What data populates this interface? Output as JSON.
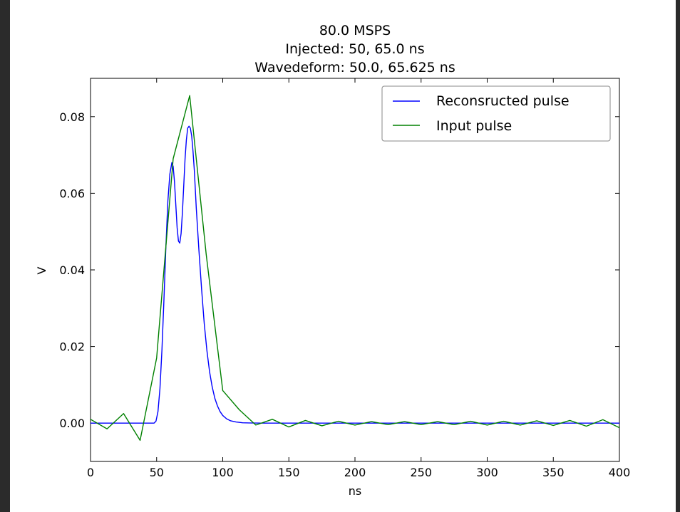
{
  "chart_data": {
    "type": "line",
    "title_lines": [
      "80.0 MSPS",
      "Injected: 50, 65.0 ns",
      "Wavedeform: 50.0, 65.625 ns"
    ],
    "xlabel": "ns",
    "ylabel": "V",
    "xlim": [
      0,
      400
    ],
    "ylim": [
      -0.01,
      0.09
    ],
    "x_ticks": [
      0,
      50,
      100,
      150,
      200,
      250,
      300,
      350,
      400
    ],
    "x_tick_labels": [
      "0",
      "50",
      "100",
      "150",
      "200",
      "250",
      "300",
      "350",
      "400"
    ],
    "y_ticks": [
      0.0,
      0.02,
      0.04,
      0.06,
      0.08
    ],
    "y_tick_labels": [
      "0.00",
      "0.02",
      "0.04",
      "0.06",
      "0.08"
    ],
    "grid": false,
    "legend_position": "top-right",
    "series": [
      {
        "name": "Reconsructed pulse",
        "color": "#0000ff",
        "x": [
          0,
          48,
          49.5,
          51,
          52.5,
          54,
          55.5,
          57,
          58.5,
          60,
          61.5,
          62.5,
          63.5,
          64.5,
          65.5,
          66.5,
          67.5,
          68.5,
          69.5,
          70.5,
          71.5,
          72.5,
          73.5,
          74.5,
          75.5,
          76.5,
          77.5,
          78.5,
          80,
          82,
          84,
          86,
          88,
          90,
          92,
          94,
          96,
          98,
          100,
          103,
          106,
          110,
          115,
          120,
          130,
          150,
          200,
          300,
          400
        ],
        "y": [
          0,
          0,
          0.0005,
          0.003,
          0.009,
          0.019,
          0.032,
          0.046,
          0.058,
          0.065,
          0.068,
          0.067,
          0.063,
          0.057,
          0.051,
          0.0475,
          0.047,
          0.0495,
          0.055,
          0.062,
          0.069,
          0.074,
          0.077,
          0.0775,
          0.077,
          0.075,
          0.071,
          0.066,
          0.056,
          0.045,
          0.035,
          0.026,
          0.019,
          0.0135,
          0.0095,
          0.0065,
          0.0045,
          0.003,
          0.002,
          0.0011,
          0.0006,
          0.0003,
          0.0001,
          5e-05,
          0,
          0,
          0,
          0,
          0
        ]
      },
      {
        "name": "Input pulse",
        "color": "#008000",
        "x": [
          0,
          12.5,
          25,
          37.5,
          50,
          62.5,
          75,
          87.5,
          100,
          112.5,
          125,
          137.5,
          150,
          162.5,
          175,
          187.5,
          200,
          212.5,
          225,
          237.5,
          250,
          262.5,
          275,
          287.5,
          300,
          312.5,
          325,
          337.5,
          350,
          362.5,
          375,
          387.5,
          400
        ],
        "y": [
          0.001,
          -0.0015,
          0.0025,
          -0.0045,
          0.017,
          0.069,
          0.0855,
          0.044,
          0.0085,
          0.0035,
          -0.0005,
          0.001,
          -0.001,
          0.0007,
          -0.0007,
          0.0005,
          -0.0005,
          0.0004,
          -0.0004,
          0.0004,
          -0.0004,
          0.0004,
          -0.0004,
          0.0005,
          -0.0005,
          0.0005,
          -0.0005,
          0.0006,
          -0.0006,
          0.0007,
          -0.0008,
          0.0009,
          -0.0012
        ]
      }
    ]
  }
}
